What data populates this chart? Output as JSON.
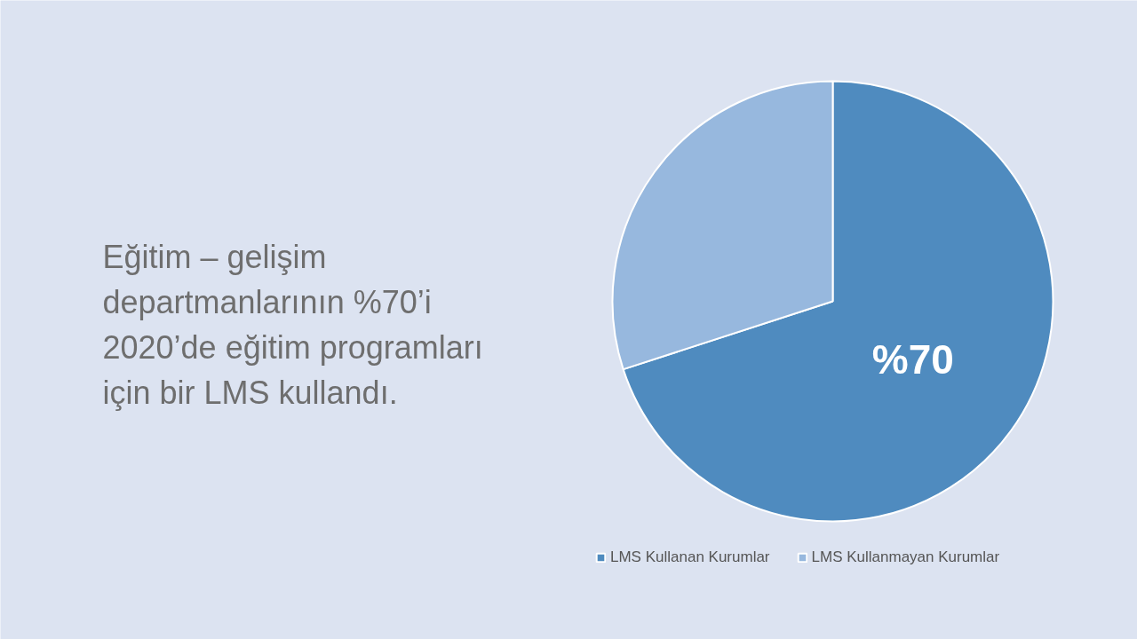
{
  "chart_data": {
    "type": "pie",
    "title": "Eğitim – gelişim departmanlarının %70’i 2020’de eğitim programları için bir LMS kullandı.",
    "categories": [
      "LMS Kullanan Kurumlar",
      "LMS Kullanmayan Kurumlar"
    ],
    "values": [
      70,
      30
    ],
    "colors": [
      "#4f8bbf",
      "#97b8de"
    ],
    "value_labels": [
      "%70",
      null
    ],
    "legend": "bottom"
  }
}
